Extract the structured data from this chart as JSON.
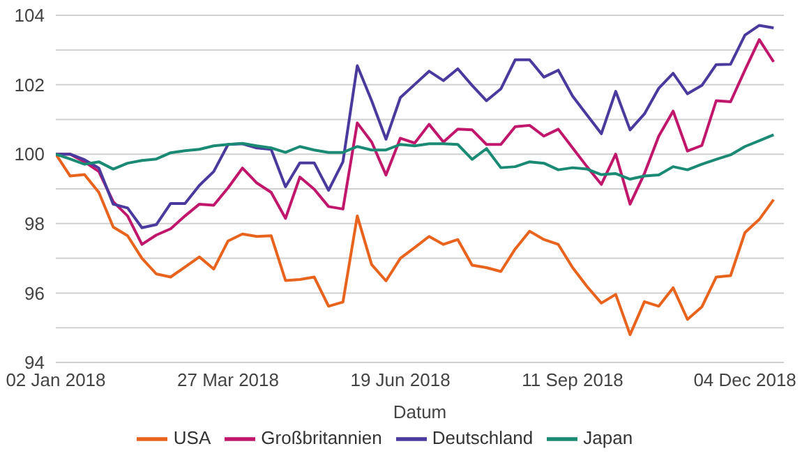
{
  "chart_data": {
    "type": "line",
    "xlabel": "Datum",
    "x": [
      "2018-01-02",
      "2018-01-09",
      "2018-01-16",
      "2018-01-23",
      "2018-01-30",
      "2018-02-06",
      "2018-02-13",
      "2018-02-20",
      "2018-02-27",
      "2018-03-06",
      "2018-03-13",
      "2018-03-20",
      "2018-03-27",
      "2018-04-03",
      "2018-04-10",
      "2018-04-17",
      "2018-04-24",
      "2018-05-01",
      "2018-05-08",
      "2018-05-15",
      "2018-05-22",
      "2018-05-29",
      "2018-06-05",
      "2018-06-12",
      "2018-06-19",
      "2018-06-26",
      "2018-07-03",
      "2018-07-10",
      "2018-07-17",
      "2018-07-24",
      "2018-07-31",
      "2018-08-07",
      "2018-08-14",
      "2018-08-21",
      "2018-08-28",
      "2018-09-04",
      "2018-09-11",
      "2018-09-18",
      "2018-09-25",
      "2018-10-02",
      "2018-10-09",
      "2018-10-16",
      "2018-10-23",
      "2018-10-30",
      "2018-11-06",
      "2018-11-13",
      "2018-11-20",
      "2018-11-27",
      "2018-12-04",
      "2018-12-11",
      "2018-12-18"
    ],
    "series": [
      {
        "name": "USA",
        "color": "#e8641e",
        "values": [
          100,
          99.37,
          99.41,
          98.9,
          97.9,
          97.65,
          97.0,
          96.55,
          96.46,
          96.75,
          97.04,
          96.69,
          97.5,
          97.7,
          97.63,
          97.65,
          96.36,
          96.39,
          96.46,
          95.62,
          95.74,
          98.22,
          96.82,
          96.35,
          97.0,
          97.31,
          97.63,
          97.4,
          97.54,
          96.8,
          96.73,
          96.62,
          97.27,
          97.78,
          97.54,
          97.4,
          96.73,
          96.19,
          95.71,
          95.96,
          94.8,
          95.75,
          95.62,
          96.15,
          95.24,
          95.6,
          96.46,
          96.5,
          97.74,
          98.12,
          98.69
        ]
      },
      {
        "name": "Großbritannien",
        "color": "#c0176c",
        "values": [
          100,
          100.0,
          99.78,
          99.5,
          98.63,
          98.22,
          97.4,
          97.67,
          97.85,
          98.22,
          98.56,
          98.53,
          99.03,
          99.6,
          99.17,
          98.9,
          98.15,
          99.34,
          98.99,
          98.49,
          98.42,
          100.9,
          100.35,
          99.4,
          100.46,
          100.32,
          100.86,
          100.35,
          100.72,
          100.7,
          100.28,
          100.28,
          100.79,
          100.83,
          100.52,
          100.72,
          100.18,
          99.64,
          99.13,
          100.0,
          98.56,
          99.44,
          100.52,
          101.24,
          100.09,
          100.25,
          101.54,
          101.51,
          102.42,
          103.3,
          102.66
        ]
      },
      {
        "name": "Deutschland",
        "color": "#4b3a9e",
        "values": [
          100,
          100,
          99.84,
          99.6,
          98.56,
          98.45,
          97.88,
          97.97,
          98.58,
          98.58,
          99.1,
          99.5,
          100.28,
          100.3,
          100.18,
          100.14,
          99.06,
          99.75,
          99.75,
          98.96,
          99.78,
          102.55,
          101.54,
          100.43,
          101.63,
          102.01,
          102.39,
          102.12,
          102.46,
          101.98,
          101.54,
          101.88,
          102.72,
          102.72,
          102.22,
          102.42,
          101.67,
          101.13,
          100.59,
          101.81,
          100.7,
          101.16,
          101.9,
          102.33,
          101.74,
          101.98,
          102.58,
          102.59,
          103.43,
          103.71,
          103.64
        ]
      },
      {
        "name": "Japan",
        "color": "#1b8a74",
        "values": [
          100,
          99.86,
          99.71,
          99.78,
          99.57,
          99.74,
          99.82,
          99.86,
          100.04,
          100.1,
          100.14,
          100.24,
          100.28,
          100.31,
          100.24,
          100.18,
          100.05,
          100.22,
          100.12,
          100.05,
          100.05,
          100.22,
          100.12,
          100.12,
          100.28,
          100.24,
          100.3,
          100.3,
          100.28,
          99.85,
          100.16,
          99.61,
          99.64,
          99.78,
          99.74,
          99.55,
          99.61,
          99.57,
          99.41,
          99.44,
          99.28,
          99.37,
          99.4,
          99.64,
          99.55,
          99.71,
          99.85,
          99.98,
          100.22,
          100.39,
          100.56
        ]
      }
    ],
    "xlim": [
      "2018-01-02",
      "2018-12-23"
    ],
    "xticks": [
      {
        "value": "2018-01-02",
        "label": "02 Jan 2018"
      },
      {
        "value": "2018-03-27",
        "label": "27 Mar 2018"
      },
      {
        "value": "2018-06-19",
        "label": "19 Jun 2018"
      },
      {
        "value": "2018-09-11",
        "label": "11 Sep 2018"
      },
      {
        "value": "2018-12-04",
        "label": "04 Dec 2018"
      }
    ],
    "ylim": [
      94,
      104
    ],
    "yticks": [
      94,
      {
        "value": 95,
        "label": null
      },
      96,
      {
        "value": 97,
        "label": null
      },
      98,
      {
        "value": 99,
        "label": null
      },
      100,
      {
        "value": 101,
        "label": null
      },
      102,
      {
        "value": 103,
        "label": null
      },
      104
    ],
    "grid": "y",
    "legend": "bottom",
    "marker": "none",
    "line_style": "solid"
  }
}
